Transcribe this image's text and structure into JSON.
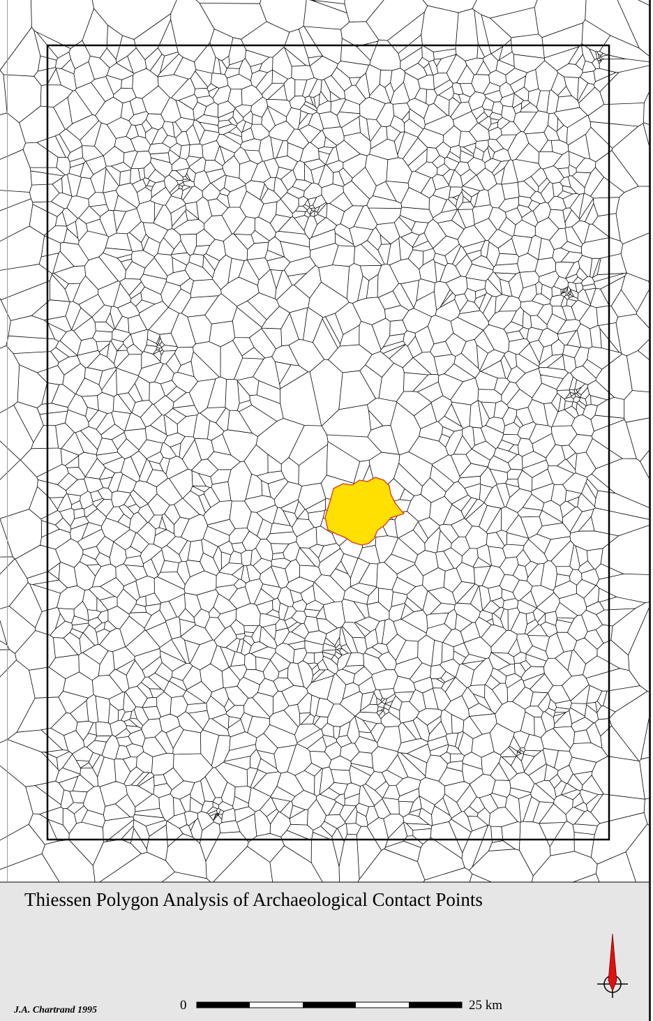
{
  "title": "Thiessen Polygon Analysis of Archaeological Contact Points",
  "author": "J.A. Chartrand 1995",
  "scale_bar": {
    "start_label": "0",
    "end_label": "25 km"
  }
}
